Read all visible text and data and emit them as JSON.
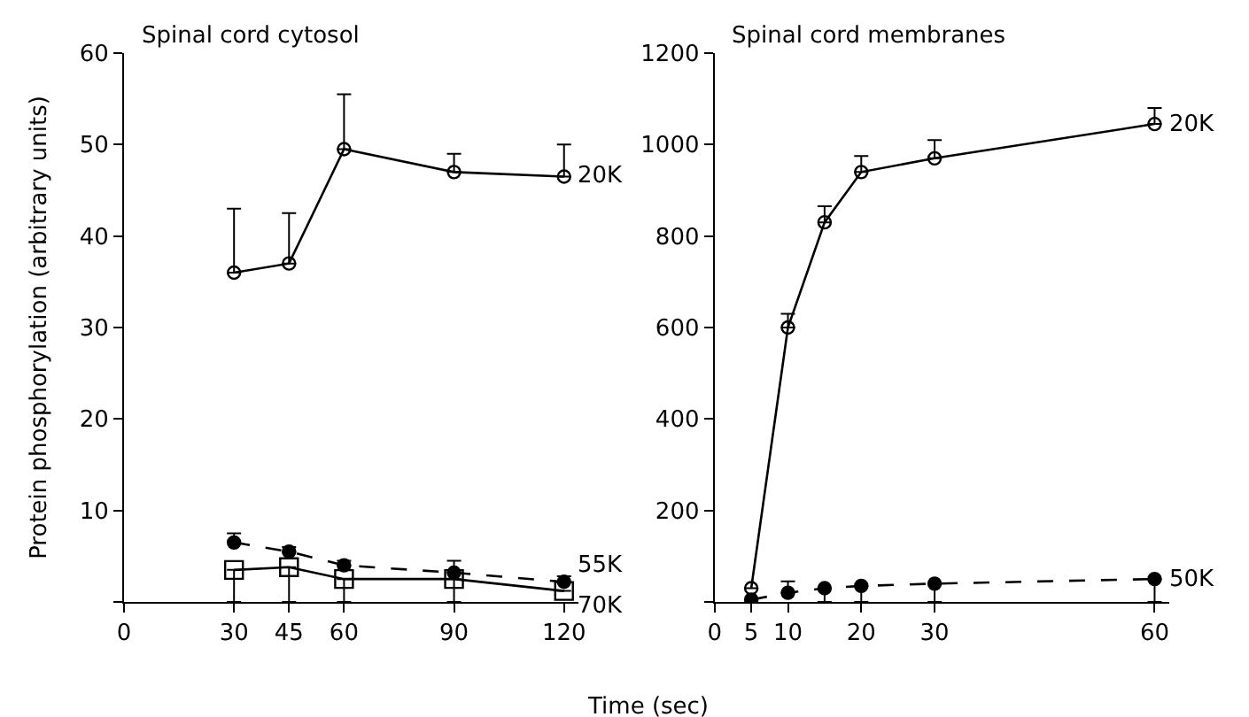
{
  "chart_data": [
    {
      "type": "line",
      "title": "Spinal cord cytosol",
      "xlabel": "Time (sec)",
      "ylabel": "Protein phosphorylation (arbitrary units)",
      "xlim": [
        0,
        124
      ],
      "xticks": [
        0,
        30,
        45,
        60,
        90,
        120
      ],
      "ylim": [
        0,
        60
      ],
      "yticks": [
        {
          "value": 0,
          "label": null
        },
        10,
        20,
        30,
        40,
        50,
        60
      ],
      "series": [
        {
          "name": "20K",
          "color": "#000000",
          "marker": "circle",
          "line_style": "solid",
          "x": [
            30,
            45,
            60,
            90,
            120
          ],
          "values": [
            36,
            37,
            49.5,
            47,
            46.5
          ],
          "errors": [
            [
              36,
              43
            ],
            [
              37,
              42.5
            ],
            [
              49.5,
              55.5
            ],
            [
              47,
              49
            ],
            [
              46.5,
              50
            ]
          ]
        },
        {
          "name": "55K",
          "color": "#000000",
          "marker": "circle",
          "line_style": "dashed",
          "x": [
            30,
            45,
            60,
            90,
            120
          ],
          "values": [
            6.5,
            5.5,
            4,
            3.2,
            2.2
          ],
          "errors": [
            [
              6.5,
              7.5
            ],
            [
              5.5,
              6
            ],
            [
              4,
              4.5
            ],
            [
              3.2,
              4.5
            ],
            [
              2.2,
              2.8
            ]
          ]
        },
        {
          "name": "70K",
          "color": "#000000",
          "marker": "square",
          "line_style": "solid",
          "x": [
            30,
            45,
            60,
            90,
            120
          ],
          "values": [
            3.5,
            3.8,
            2.5,
            2.5,
            1.2
          ],
          "errors": [
            [
              0,
              3.5
            ],
            [
              0,
              3.8
            ],
            [
              0,
              2.5
            ],
            [
              0,
              2.5
            ],
            null
          ]
        }
      ]
    },
    {
      "type": "line",
      "title": "Spinal cord membranes",
      "xlim": [
        0,
        62
      ],
      "xticks": [
        0,
        5,
        10,
        20,
        30,
        60
      ],
      "ylim": [
        0,
        1200
      ],
      "yticks": [
        {
          "value": 0,
          "label": null
        },
        200,
        400,
        600,
        800,
        1000,
        1200
      ],
      "series": [
        {
          "name": "20K",
          "color": "#000000",
          "marker": "circle",
          "line_style": "solid",
          "x": [
            5,
            10,
            15,
            20,
            30,
            60
          ],
          "values": [
            30,
            600,
            830,
            940,
            970,
            1045
          ],
          "errors": [
            null,
            [
              600,
              630
            ],
            [
              830,
              865
            ],
            [
              940,
              975
            ],
            [
              970,
              1010
            ],
            [
              1045,
              1080
            ]
          ]
        },
        {
          "name": "50K",
          "color": "#000000",
          "marker": "circle",
          "line_style": "dashed",
          "x": [
            5,
            10,
            15,
            20,
            30,
            60
          ],
          "values": [
            5,
            20,
            30,
            35,
            40,
            50
          ],
          "errors": [
            null,
            [
              20,
              45
            ],
            [
              0,
              30
            ],
            [
              0,
              35
            ],
            [
              0,
              40
            ],
            [
              0,
              50
            ]
          ]
        }
      ]
    }
  ]
}
